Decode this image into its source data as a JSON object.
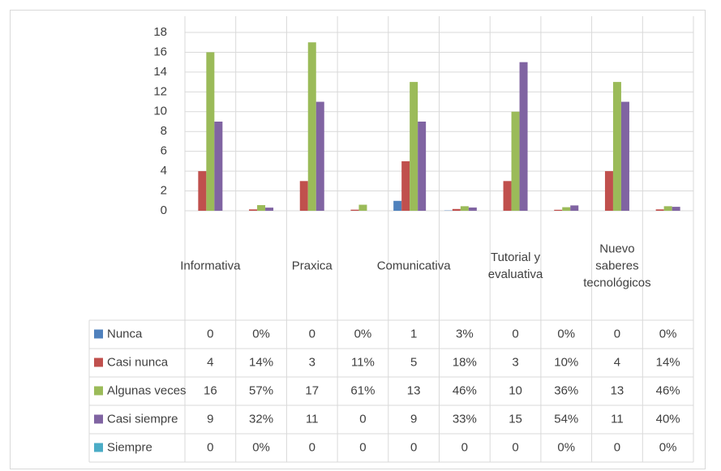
{
  "chart_data": {
    "type": "bar",
    "categories": [
      "Informativa",
      null,
      "Praxica",
      null,
      "Comunicativa",
      null,
      "Tutorial y evaluativa",
      null,
      "Nuevo saberes tecnológicos",
      null
    ],
    "series": [
      {
        "name": "Nunca",
        "color": "#4f81bd",
        "values": [
          0,
          0,
          0,
          0,
          1,
          0.03,
          0,
          0,
          0,
          0
        ],
        "value_labels": [
          "0",
          "0%",
          "0",
          "0%",
          "1",
          "3%",
          "0",
          "0%",
          "0",
          "0%"
        ]
      },
      {
        "name": "Casi nunca",
        "color": "#c0504d",
        "values": [
          4,
          0.14,
          3,
          0.11,
          5,
          0.18,
          3,
          0.1,
          4,
          0.14
        ],
        "value_labels": [
          "4",
          "14%",
          "3",
          "11%",
          "5",
          "18%",
          "3",
          "10%",
          "4",
          "14%"
        ]
      },
      {
        "name": "Algunas veces",
        "color": "#9bbb59",
        "values": [
          16,
          0.57,
          17,
          0.61,
          13,
          0.46,
          10,
          0.36,
          13,
          0.46
        ],
        "value_labels": [
          "16",
          "57%",
          "17",
          "61%",
          "13",
          "46%",
          "10",
          "36%",
          "13",
          "46%"
        ]
      },
      {
        "name": "Casi siempre",
        "color": "#8064a2",
        "values": [
          9,
          0.32,
          11,
          0,
          9,
          0.33,
          15,
          0.54,
          11,
          0.4
        ],
        "value_labels": [
          "9",
          "32%",
          "11",
          "0",
          "9",
          "33%",
          "15",
          "54%",
          "11",
          "40%"
        ]
      },
      {
        "name": "Siempre",
        "color": "#4bacc6",
        "values": [
          0,
          0,
          0,
          0,
          0,
          0,
          0,
          0,
          0,
          0
        ],
        "value_labels": [
          "0",
          "0%",
          "0",
          "0",
          "0",
          "0",
          "0",
          "0%",
          "0",
          "0%"
        ]
      }
    ],
    "ylim": [
      0,
      18
    ],
    "yticks": [
      0,
      2,
      4,
      6,
      8,
      10,
      12,
      14,
      16,
      18
    ],
    "grid": true,
    "data_table": true
  }
}
